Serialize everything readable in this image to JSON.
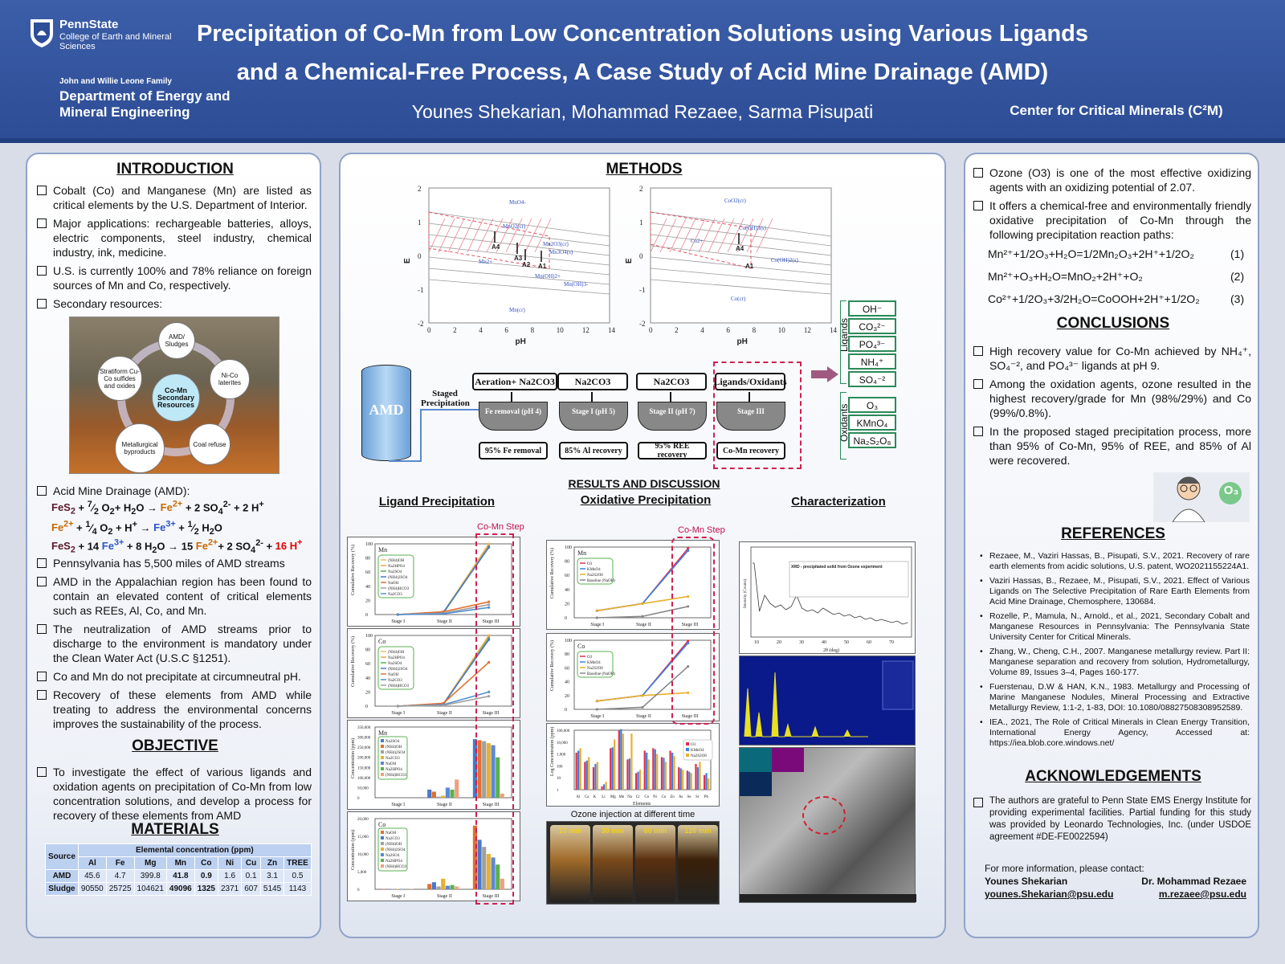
{
  "header": {
    "university": "PennState",
    "college": "College of Earth and Mineral Sciences",
    "dept_family": "John and Willie Leone Family",
    "dept_name": "Department of Energy and Mineral Engineering",
    "title_line1": "Precipitation of Co-Mn from Low Concentration Solutions using Various Ligands",
    "title_line2": "and a Chemical-Free Process, A Case Study of Acid Mine Drainage (AMD)",
    "authors": "Younes Shekarian, Mohammad Rezaee, Sarma Pisupati",
    "center": "Center for Critical Minerals (C²M)"
  },
  "introduction": {
    "title": "INTRODUCTION",
    "bullets": [
      "Cobalt (Co) and Manganese (Mn) are listed as critical elements by the U.S. Department of Interior.",
      "Major applications: rechargeable batteries, alloys, electric components, steel industry, chemical industry, ink, medicine.",
      "U.S. is currently 100% and 78% reliance on foreign sources of Mn and Co, respectively.",
      "Secondary resources:"
    ],
    "resource_center": "Co-Mn Secondary Resources",
    "resource_nodes": [
      "AMD/ Sludges",
      "Ni-Co laterites",
      "Coal refuse",
      "Metallurgical byproducts",
      "Stratiform Cu-Co sulfides and oxides"
    ],
    "amd_bullet": "Acid Mine Drainage (AMD):",
    "bullets2": [
      "Pennsylvania has 5,500 miles of AMD streams",
      "AMD in the Appalachian region has been found to contain an elevated content of critical elements such as REEs, Al, Co, and Mn.",
      "The neutralization of AMD streams prior to discharge to the environment is mandatory under the Clean Water Act (U.S.C §1251).",
      "Co and Mn do not precipitate at circumneutral pH.",
      "Recovery of these elements from AMD while treating to address the environmental concerns improves the sustainability of the process."
    ]
  },
  "objective": {
    "title": "OBJECTIVE",
    "text": "To investigate the effect of various ligands and oxidation agents on precipitation of Co-Mn from low concentration solutions, and develop a process for recovery of these elements from AMD"
  },
  "materials": {
    "title": "MATERIALS",
    "source_header": "Source",
    "conc_header": "Elemental concentration (ppm)",
    "columns": [
      "Al",
      "Fe",
      "Mg",
      "Mn",
      "Co",
      "Ni",
      "Cu",
      "Zn",
      "TREE"
    ],
    "rows": [
      {
        "name": "AMD",
        "values": [
          "45.6",
          "4.7",
          "399.8",
          "41.8",
          "0.9",
          "1.6",
          "0.1",
          "3.1",
          "0.5"
        ]
      },
      {
        "name": "Sludge",
        "values": [
          "90550",
          "25725",
          "104621",
          "49096",
          "1325",
          "2371",
          "607",
          "5145",
          "1143"
        ]
      }
    ]
  },
  "methods": {
    "title": "METHODS",
    "pourbaix_ylabel": "E",
    "pourbaix_xlabel": "pH",
    "x_ticks": [
      "0",
      "2",
      "4",
      "6",
      "8",
      "10",
      "12",
      "14"
    ],
    "y_ticks": [
      "2",
      "1",
      "0",
      "-1",
      "-2"
    ],
    "mn_species": [
      "MnO4-",
      "MnO2(cr)",
      "Mn2O3(cr)",
      "Mn3O4(s)",
      "Mn2+",
      "Mn(OH)2+",
      "Mn(OH)3-",
      "Mn(cr)"
    ],
    "co_species": [
      "CoO2(cr)",
      "Co(OH)3(s)",
      "Co2+",
      "Co(OH)2(s)",
      "Co(cr)"
    ],
    "markers": [
      "A4",
      "A3",
      "A2",
      "A1"
    ],
    "tank_label": "AMD",
    "staged_label": "Staged Precipitation",
    "steps": [
      {
        "reagent": "Aeration+ Na2CO3",
        "stage": "Fe removal (pH 4)",
        "result": "95% Fe removal"
      },
      {
        "reagent": "Na2CO3",
        "stage": "Stage I (pH 5)",
        "result": "85% Al recovery"
      },
      {
        "reagent": "Na2CO3",
        "stage": "Stage II (pH 7)",
        "result": "95% REE recovery"
      },
      {
        "reagent": "Ligands/Oxidants",
        "stage": "Stage III",
        "result": "Co-Mn recovery"
      }
    ],
    "ligands_label": "Ligands",
    "ligands": [
      "OH⁻",
      "CO₃²⁻",
      "PO₄³⁻",
      "NH₄⁺",
      "SO₄⁻²"
    ],
    "oxidants_label": "Oxidants",
    "oxidants": [
      "O₃",
      "KMnO₄",
      "Na₂S₂O₈"
    ]
  },
  "results": {
    "title": "RESULTS AND DISCUSSION",
    "ligand_title": "Ligand Precipitation",
    "oxidative_title": "Oxidative Precipitation",
    "char_title": "Characterization",
    "step_label": "Co-Mn Step",
    "stages": [
      "Stage I",
      "Stage II",
      "Stage III"
    ],
    "ozone_caption": "Ozone injection at different time",
    "ozone_times": [
      "10 min",
      "30 min",
      "60 min",
      "120 min"
    ],
    "xrd_title": "XRD - precipitated solid from Ozone experiment",
    "xrd_xlabel": "2θ (deg)",
    "xrd_ylabel": "Intensity (Counts)"
  },
  "chart_data": [
    {
      "type": "line",
      "title": "Mn",
      "ylabel": "Cumulative Recovery (%)",
      "categories": [
        "Stage I",
        "Stage II",
        "Stage III"
      ],
      "ylim": [
        0,
        100
      ],
      "series": [
        {
          "name": "(NH4)OH",
          "values": [
            0,
            3,
            100
          ],
          "color": "#e8c060"
        },
        {
          "name": "Na2HPO4",
          "values": [
            0,
            2,
            98
          ],
          "color": "#f0a050"
        },
        {
          "name": "Na2SO4",
          "values": [
            0,
            2,
            96
          ],
          "color": "#5ab050"
        },
        {
          "name": "(NH4)2SO4",
          "values": [
            0,
            3,
            95
          ],
          "color": "#4a78c8"
        },
        {
          "name": "NaOH",
          "values": [
            0,
            4,
            18
          ],
          "color": "#e07030"
        },
        {
          "name": "(NH4)HCO3",
          "values": [
            0,
            2,
            14
          ],
          "color": "#a0a0a0"
        },
        {
          "name": "Na2CO3",
          "values": [
            0,
            1,
            10
          ],
          "color": "#5090d0"
        }
      ]
    },
    {
      "type": "line",
      "title": "Co",
      "ylabel": "Cumulative Recovery (%)",
      "categories": [
        "Stage I",
        "Stage II",
        "Stage III"
      ],
      "ylim": [
        0,
        100
      ],
      "series": [
        {
          "name": "(NH4)OH",
          "values": [
            0,
            3,
            100
          ],
          "color": "#e8c060"
        },
        {
          "name": "Na2HPO4",
          "values": [
            0,
            2,
            98
          ],
          "color": "#f0a050"
        },
        {
          "name": "Na2SO4",
          "values": [
            0,
            2,
            96
          ],
          "color": "#5ab050"
        },
        {
          "name": "(NH4)2SO4",
          "values": [
            0,
            3,
            94
          ],
          "color": "#4a78c8"
        },
        {
          "name": "NaOH",
          "values": [
            0,
            4,
            62
          ],
          "color": "#e07030"
        },
        {
          "name": "Na2CO3",
          "values": [
            0,
            2,
            20
          ],
          "color": "#5090d0"
        },
        {
          "name": "(NH4)HCO3",
          "values": [
            0,
            1,
            14
          ],
          "color": "#a0a0a0"
        }
      ]
    },
    {
      "type": "bar",
      "title": "Mn",
      "ylabel": "Concentration (ppm)",
      "categories": [
        "Stage I",
        "Stage II",
        "Stage III"
      ],
      "ylim": [
        0,
        350000
      ],
      "y_ticks": [
        "350,000",
        "300,000",
        "250,000",
        "200,000",
        "150,000",
        "100,000",
        "50,000",
        "0"
      ],
      "series": [
        {
          "name": "Na2SO4",
          "values": [
            500,
            40000,
            290000
          ],
          "color": "#4a78c8"
        },
        {
          "name": "(NH4)OH",
          "values": [
            500,
            30000,
            285000
          ],
          "color": "#e07030"
        },
        {
          "name": "(NH4)2SO4",
          "values": [
            400,
            5000,
            280000
          ],
          "color": "#a0a0a0"
        },
        {
          "name": "Na2CO3",
          "values": [
            300,
            10000,
            270000
          ],
          "color": "#e8b030"
        },
        {
          "name": "NaOH",
          "values": [
            300,
            50000,
            260000
          ],
          "color": "#5a88d8"
        },
        {
          "name": "Na2HPO4",
          "values": [
            300,
            40000,
            200000
          ],
          "color": "#5ab050"
        },
        {
          "name": "(NH4)HCO3",
          "values": [
            200,
            90000,
            20000
          ],
          "color": "#f0a080"
        }
      ]
    },
    {
      "type": "bar",
      "title": "Co",
      "ylabel": "Concentration (ppm)",
      "categories": [
        "Stage I",
        "Stage II",
        "Stage III"
      ],
      "ylim": [
        0,
        20000
      ],
      "y_ticks": [
        "20,000",
        "15,000",
        "10,000",
        "5,000",
        "0"
      ],
      "series": [
        {
          "name": "NaOH",
          "values": [
            100,
            1500,
            18000
          ],
          "color": "#e07030"
        },
        {
          "name": "Na2CO3",
          "values": [
            100,
            2000,
            14000
          ],
          "color": "#4a78c8"
        },
        {
          "name": "(NH4)OH",
          "values": [
            100,
            800,
            12000
          ],
          "color": "#a0a0a0"
        },
        {
          "name": "(NH4)2SO4",
          "values": [
            100,
            3000,
            10000
          ],
          "color": "#e8b030"
        },
        {
          "name": "Na2SO4",
          "values": [
            100,
            1000,
            9000
          ],
          "color": "#5a88d8"
        },
        {
          "name": "Na2HPO4",
          "values": [
            100,
            1200,
            7000
          ],
          "color": "#5ab050"
        },
        {
          "name": "(NH4)HCO3",
          "values": [
            100,
            800,
            3000
          ],
          "color": "#f0a080"
        }
      ]
    },
    {
      "type": "line",
      "title": "Mn",
      "ylabel": "Cumulative Recovery (%)",
      "categories": [
        "Stage I",
        "Stage II",
        "Stage III"
      ],
      "ylim": [
        0,
        100
      ],
      "series": [
        {
          "name": "O3",
          "values": [
            10,
            20,
            98
          ],
          "color": "#e03050"
        },
        {
          "name": "KMnO4",
          "values": [
            10,
            20,
            95
          ],
          "color": "#3a80e0"
        },
        {
          "name": "Na2S2O8",
          "values": [
            10,
            20,
            30
          ],
          "color": "#e8b030"
        },
        {
          "name": "Baseline (NaOH)",
          "values": [
            0,
            2,
            16
          ],
          "color": "#888888"
        }
      ]
    },
    {
      "type": "line",
      "title": "Co",
      "ylabel": "Cumulative Recovery (%)",
      "categories": [
        "Stage I",
        "Stage II",
        "Stage III"
      ],
      "ylim": [
        0,
        100
      ],
      "series": [
        {
          "name": "O3",
          "values": [
            12,
            20,
            99
          ],
          "color": "#e03050"
        },
        {
          "name": "KMnO4",
          "values": [
            12,
            20,
            96
          ],
          "color": "#3a80e0"
        },
        {
          "name": "Na2S2O8",
          "values": [
            12,
            20,
            24
          ],
          "color": "#e8b030"
        },
        {
          "name": "Baseline (NaOH)",
          "values": [
            0,
            3,
            62
          ],
          "color": "#888888"
        }
      ]
    },
    {
      "type": "bar",
      "ylabel": "Log Concentration (ppm)",
      "xlabel": "Elements",
      "scale": "log",
      "y_ticks": [
        "100,000",
        "10,000",
        "1,000",
        "100",
        "10",
        "1"
      ],
      "categories": [
        "Al",
        "Ca",
        "K",
        "Li",
        "Mg",
        "Mn",
        "Na",
        "Cr",
        "Co",
        "Ni",
        "Cu",
        "Zn",
        "As",
        "Se",
        "Sr",
        "Pb"
      ],
      "series": [
        {
          "name": "O3",
          "values": [
            2000,
            300,
            100,
            2,
            5000,
            200000,
            500,
            30,
            3000,
            5000,
            800,
            3000,
            100,
            50,
            200,
            20
          ],
          "color": "#e03050"
        },
        {
          "name": "KMnO4",
          "values": [
            3000,
            400,
            200,
            3,
            6000,
            250000,
            600,
            40,
            2000,
            4000,
            700,
            2000,
            80,
            40,
            100,
            30
          ],
          "color": "#3a80e0"
        },
        {
          "name": "Na2S2O8",
          "values": [
            5000,
            800,
            300,
            5,
            30000,
            100000,
            100000,
            60,
            500,
            1500,
            300,
            1000,
            60,
            30,
            300,
            10
          ],
          "color": "#e8b030"
        }
      ]
    }
  ],
  "right": {
    "bullets": [
      "Ozone (O3) is one of the most effective oxidizing agents with an oxidizing potential of 2.07.",
      "It offers a chemical-free and environmentally friendly oxidative precipitation of Co-Mn through the following precipitation reaction paths:"
    ],
    "reactions": [
      {
        "eq": "Mn²⁺+1/2O₃+H₂O=1/2Mn₂O₃+2H⁺+1/2O₂",
        "num": "(1)"
      },
      {
        "eq": "Mn²⁺+O₃+H₂O=MnO₂+2H⁺+O₂",
        "num": "(2)"
      },
      {
        "eq": "Co²⁺+1/2O₃+3/2H₂O=CoOOH+2H⁺+1/2O₂",
        "num": "(3)"
      }
    ],
    "conclusions_title": "CONCLUSIONS",
    "conclusions": [
      "High recovery value for Co-Mn achieved by NH₄⁺, SO₄⁻², and PO₄³⁻ ligands at pH 9.",
      "Among the oxidation agents, ozone resulted in the highest recovery/grade for Mn (98%/29%) and Co (99%/0.8%).",
      "In the proposed staged precipitation process, more than 95% of Co-Mn, 95% of REE, and 85% of Al were recovered."
    ],
    "o3_badge": "O₃",
    "references_title": "REFERENCES",
    "references": [
      "Rezaee, M., Vaziri Hassas, B., Pisupati, S.V., 2021. Recovery of rare earth elements from acidic solutions, U.S. patent, WO2021155224A1.",
      "Vaziri Hassas, B., Rezaee, M., Pisupati, S.V., 2021. Effect of Various Ligands on The Selective Precipitation of Rare Earth Elements from Acid Mine Drainage, Chemosphere, 130684.",
      "Rozelle, P., Mamula, N., Arnold., et al., 2021, Secondary Cobalt and Manganese Resources in Pennsylvania: The Pennsylvania State University Center for Critical Minerals.",
      "Zhang, W., Cheng, C.H., 2007. Manganese metallurgy review. Part II: Manganese separation and recovery from solution, Hydrometallurgy, Volume 89, Issues 3–4, Pages 160-177.",
      "Fuerstenau, D.W & HAN, K.N., 1983. Metallurgy and Processing of Marine Manganese Nodules, Mineral Processing and Extractive Metallurgy Review, 1:1-2, 1-83, DOI: 10.1080/08827508308952589.",
      "IEA., 2021, The Role of Critical Minerals in Clean Energy Transition, International Energy Agency, Accessed at: https://iea.blob.core.windows.net/"
    ],
    "ack_title": "ACKNOWLEDGEMENTS",
    "ack_text": "The authors are grateful to Penn State EMS Energy Institute for providing experimental facilities. Partial funding for this study was provided by Leonardo Technologies, Inc. (under USDOE agreement #DE-FE0022594)",
    "contact_intro": "For more information, please contact:",
    "contact1_name": "Younes Shekarian",
    "contact1_email": "younes.Shekarian@psu.edu",
    "contact2_name": "Dr. Mohammad Rezaee",
    "contact2_email": "m.rezaee@psu.edu"
  }
}
